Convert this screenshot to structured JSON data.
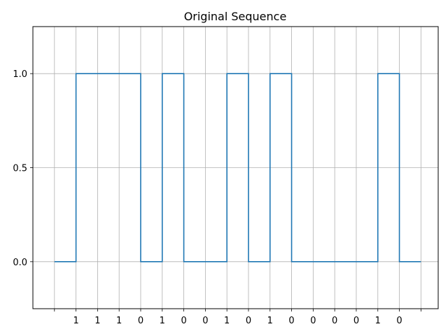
{
  "chart_data": {
    "type": "line",
    "title": "Original Sequence",
    "xlabel": "",
    "ylabel": "",
    "step": "post",
    "grid": true,
    "colors": {
      "series": "#1f77b4",
      "grid": "#b0b0b0",
      "axis": "#000000"
    },
    "xlim": [
      -1,
      17.8
    ],
    "ylim": [
      -0.25,
      1.25
    ],
    "yticks": [
      0.0,
      0.5,
      1.0
    ],
    "ytick_labels": [
      "0.0",
      "0.5",
      "1.0"
    ],
    "xticks": [
      0,
      1,
      2,
      3,
      4,
      5,
      6,
      7,
      8,
      9,
      10,
      11,
      12,
      13,
      14,
      15,
      16,
      17
    ],
    "xtick_labels": [
      "",
      "1",
      "1",
      "1",
      "0",
      "1",
      "0",
      "0",
      "1",
      "0",
      "1",
      "0",
      "0",
      "0",
      "0",
      "1",
      "0",
      ""
    ],
    "series": [
      {
        "x": [
          0,
          1,
          2,
          3,
          4,
          5,
          6,
          7,
          8,
          9,
          10,
          11,
          12,
          13,
          14,
          15,
          16,
          17
        ],
        "values": [
          0,
          1,
          1,
          1,
          0,
          1,
          0,
          0,
          1,
          0,
          1,
          0,
          0,
          0,
          0,
          1,
          0,
          0
        ]
      }
    ]
  }
}
